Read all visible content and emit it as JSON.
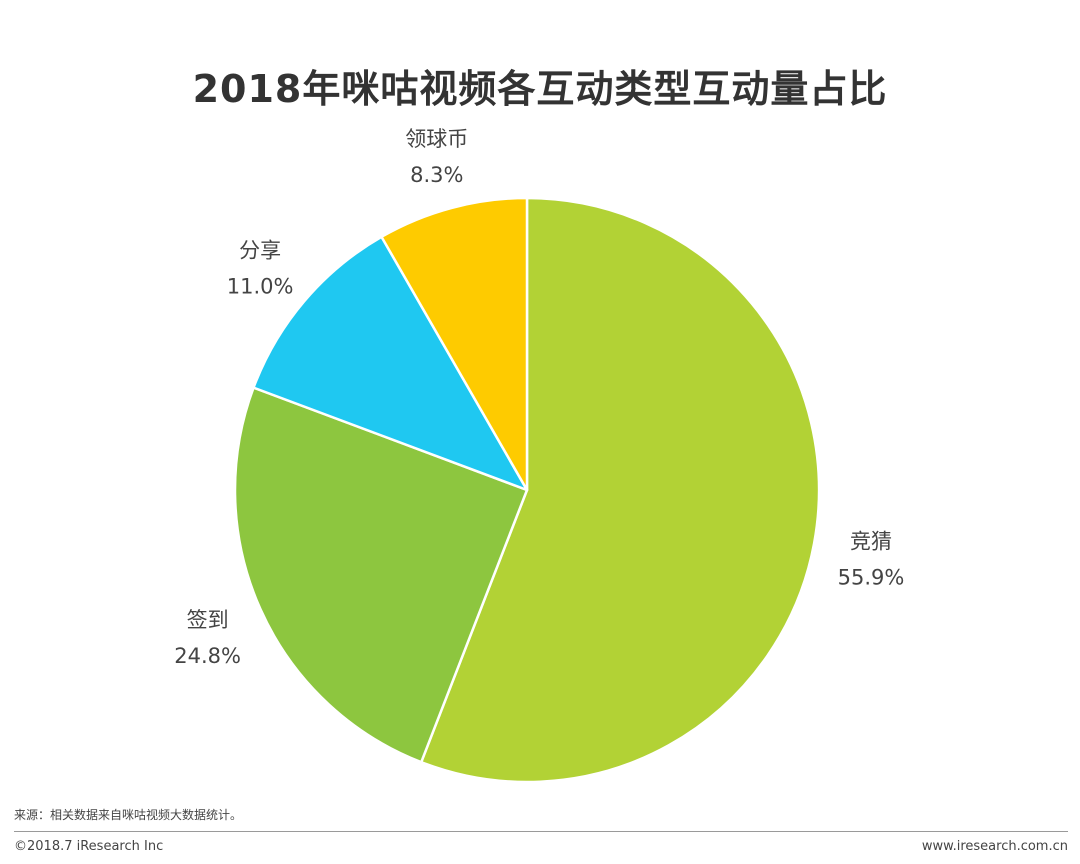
{
  "chart_data": {
    "type": "pie",
    "title": "2018年咪咕视频各互动类型互动量占比",
    "slices": [
      {
        "label": "竞猜",
        "value": 55.9,
        "value_label": "55.9%",
        "color": "#b2d235"
      },
      {
        "label": "签到",
        "value": 24.8,
        "value_label": "24.8%",
        "color": "#8dc63f"
      },
      {
        "label": "分享",
        "value": 11.0,
        "value_label": "11.0%",
        "color": "#1fc8f1"
      },
      {
        "label": "领球币",
        "value": 8.3,
        "value_label": "8.3%",
        "color": "#fecb00"
      }
    ],
    "start": "12 o'clock",
    "direction": "clockwise"
  },
  "footer": {
    "source": "来源：相关数据来自咪咕视频大数据统计。",
    "copyright": "©2018.7 iResearch Inc",
    "website": "www.iresearch.com.cn"
  }
}
